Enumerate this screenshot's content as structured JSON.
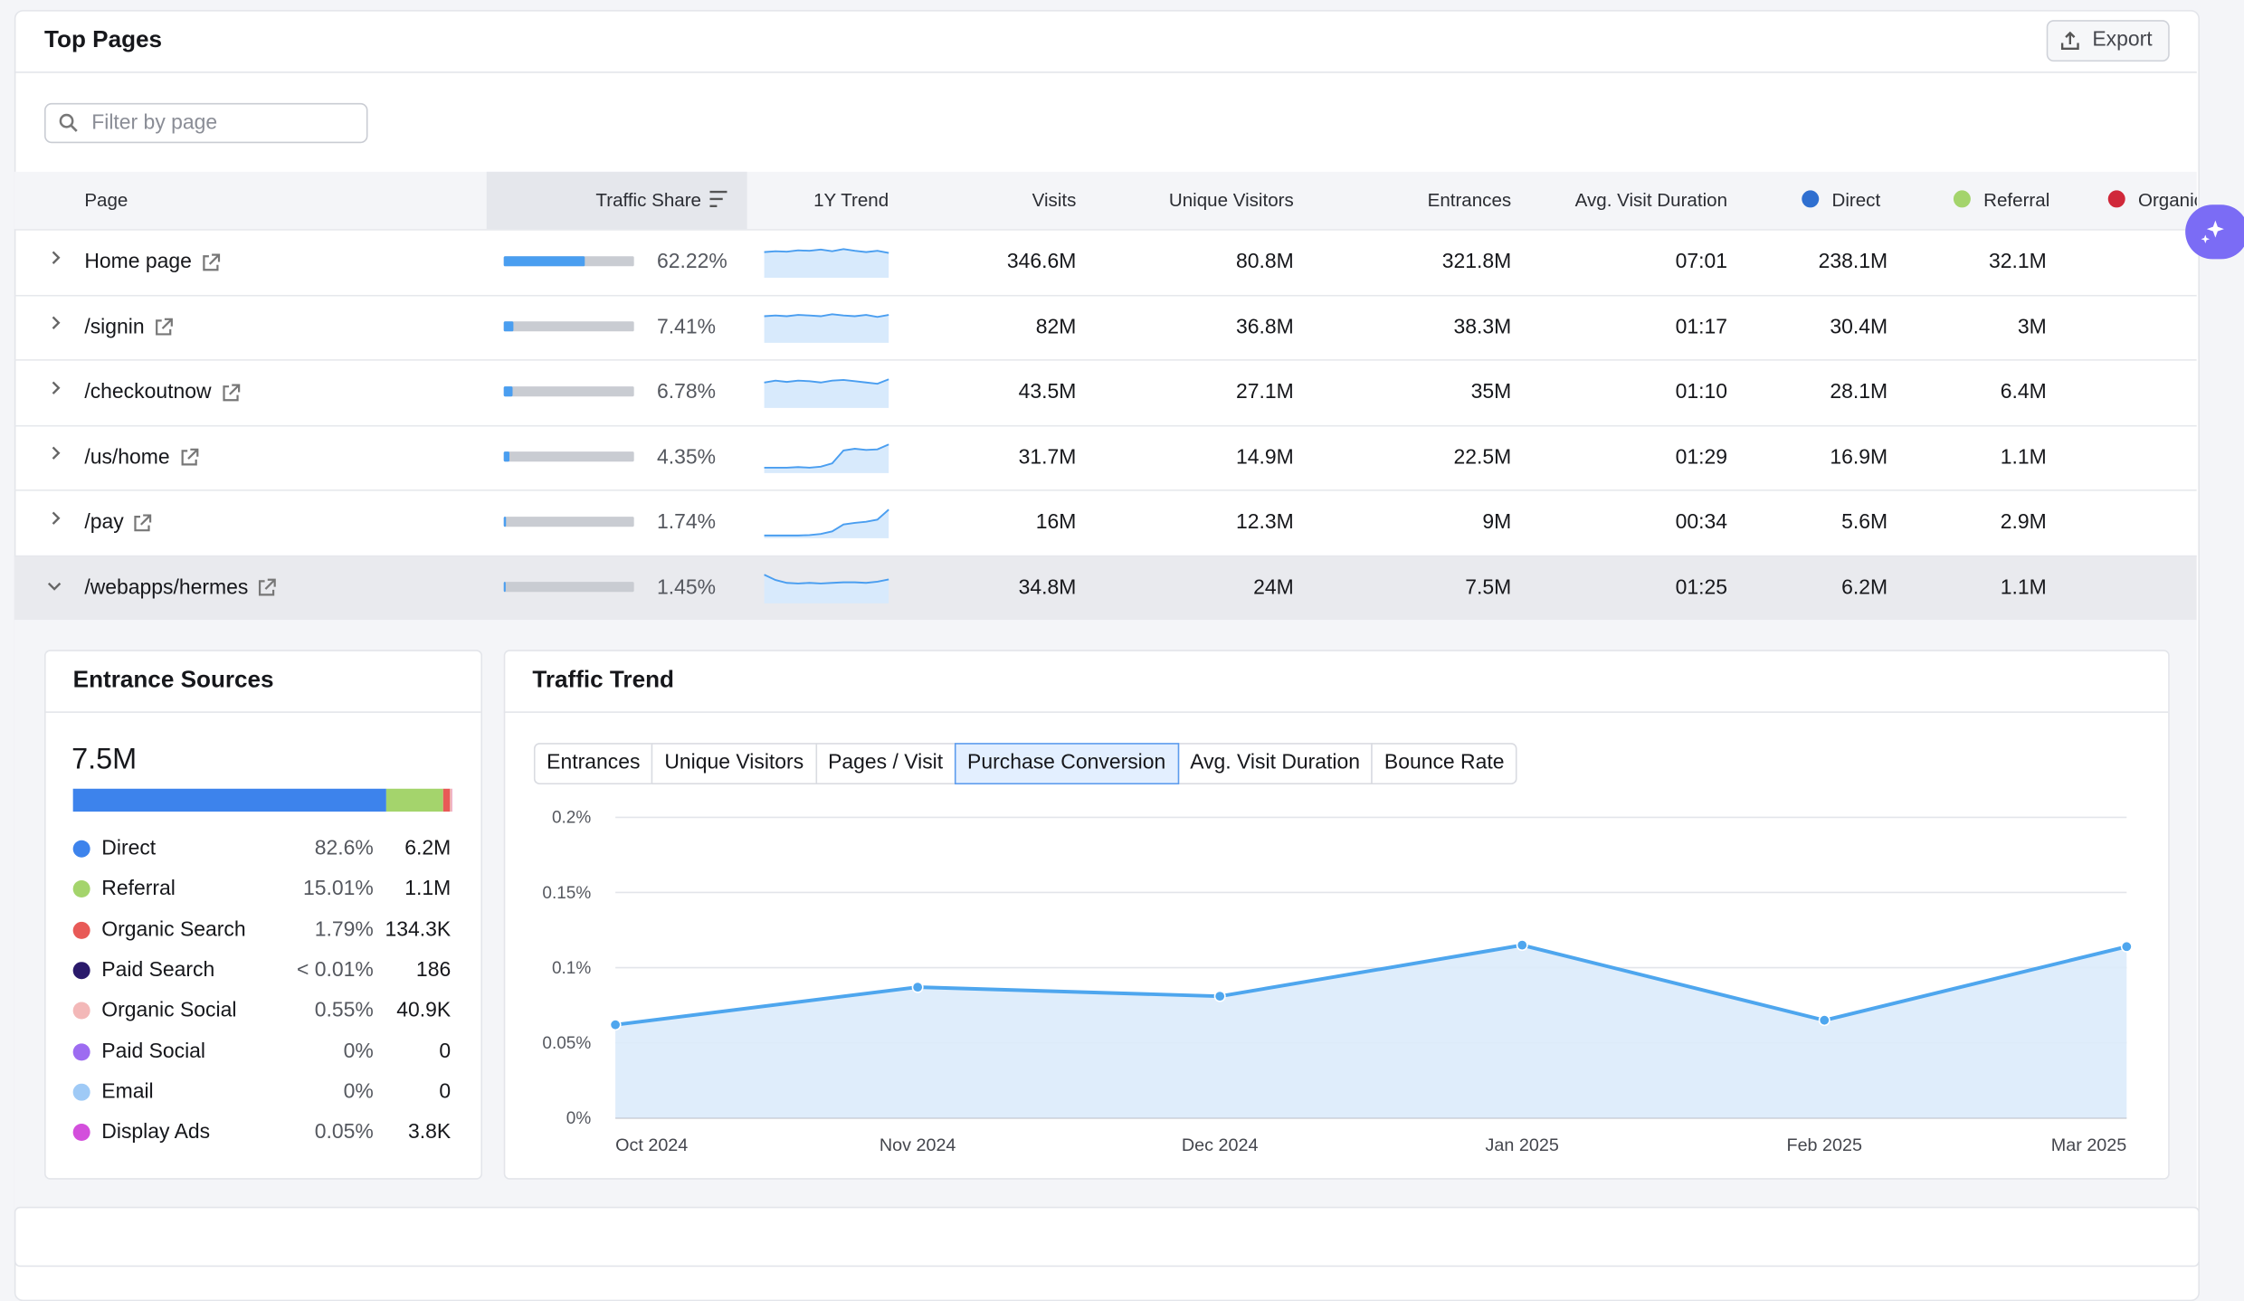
{
  "header": {
    "title": "Top Pages",
    "export": "Export"
  },
  "filter_placeholder": "Filter by page",
  "table": {
    "columns": [
      {
        "label": "Page"
      },
      {
        "label": "Traffic Share"
      },
      {
        "label": "1Y Trend"
      },
      {
        "label": "Visits"
      },
      {
        "label": "Unique Visitors"
      },
      {
        "label": "Entrances"
      },
      {
        "label": "Avg. Visit Duration"
      },
      {
        "label": "Direct",
        "dot": "#2f6fd0"
      },
      {
        "label": "Referral",
        "dot": "#a4d46c"
      },
      {
        "label": "Organic",
        "dot": "#d0283a"
      }
    ],
    "rows": [
      {
        "page": "Home page",
        "traffic_share": 62.22,
        "traffic_share_label": "62.22%",
        "trend": [
          6.0,
          6.2,
          6.1,
          6.4,
          6.3,
          6.6,
          6.2,
          6.7,
          6.3,
          6.0,
          6.3,
          5.8
        ],
        "visits": "346.6M",
        "unique_visitors": "80.8M",
        "entrances": "321.8M",
        "duration": "07:01",
        "direct": "238.1M",
        "referral": "32.1M"
      },
      {
        "page": "/signin",
        "traffic_share": 7.41,
        "traffic_share_label": "7.41%",
        "trend": [
          4.0,
          4.1,
          4.0,
          4.2,
          4.1,
          4.0,
          4.3,
          4.1,
          4.0,
          4.2,
          3.9,
          4.2
        ],
        "visits": "82M",
        "unique_visitors": "36.8M",
        "entrances": "38.3M",
        "duration": "01:17",
        "direct": "30.4M",
        "referral": "3M"
      },
      {
        "page": "/checkoutnow",
        "traffic_share": 6.78,
        "traffic_share_label": "6.78%",
        "trend": [
          4.0,
          4.3,
          4.1,
          4.3,
          4.2,
          4.0,
          4.3,
          4.4,
          4.2,
          4.0,
          3.8,
          4.5
        ],
        "visits": "43.5M",
        "unique_visitors": "27.1M",
        "entrances": "35M",
        "duration": "01:10",
        "direct": "28.1M",
        "referral": "6.4M"
      },
      {
        "page": "/us/home",
        "traffic_share": 4.35,
        "traffic_share_label": "4.35%",
        "trend": [
          1.0,
          1.0,
          1.0,
          1.1,
          1.0,
          1.2,
          1.8,
          4.2,
          4.5,
          4.3,
          4.4,
          5.3
        ],
        "visits": "31.7M",
        "unique_visitors": "14.9M",
        "entrances": "22.5M",
        "duration": "01:29",
        "direct": "16.9M",
        "referral": "1.1M"
      },
      {
        "page": "/pay",
        "traffic_share": 1.74,
        "traffic_share_label": "1.74%",
        "trend": [
          0.5,
          0.5,
          0.5,
          0.5,
          0.6,
          0.8,
          1.3,
          2.6,
          2.9,
          3.1,
          3.5,
          5.4
        ],
        "visits": "16M",
        "unique_visitors": "12.3M",
        "entrances": "9M",
        "duration": "00:34",
        "direct": "5.6M",
        "referral": "2.9M"
      },
      {
        "page": "/webapps/hermes",
        "traffic_share": 1.45,
        "traffic_share_label": "1.45%",
        "trend": [
          4.9,
          4.0,
          3.5,
          3.4,
          3.5,
          3.4,
          3.5,
          3.6,
          3.6,
          3.5,
          3.7,
          4.1
        ],
        "visits": "34.8M",
        "unique_visitors": "24M",
        "entrances": "7.5M",
        "duration": "01:25",
        "direct": "6.2M",
        "referral": "1.1M"
      }
    ]
  },
  "entrance_sources": {
    "title": "Entrance Sources",
    "total": "7.5M",
    "sources": [
      {
        "name": "Direct",
        "color": "#3d83ec",
        "share": 82.6,
        "share_label": "82.6%",
        "count": "6.2M"
      },
      {
        "name": "Referral",
        "color": "#a4d46c",
        "share": 15.01,
        "share_label": "15.01%",
        "count": "1.1M"
      },
      {
        "name": "Organic Search",
        "color": "#e85a57",
        "share": 1.79,
        "share_label": "1.79%",
        "count": "134.3K"
      },
      {
        "name": "Paid Search",
        "color": "#2a1a6b",
        "share": 0.01,
        "share_label": "< 0.01%",
        "count": "186"
      },
      {
        "name": "Organic Social",
        "color": "#f3b8b8",
        "share": 0.55,
        "share_label": "0.55%",
        "count": "40.9K"
      },
      {
        "name": "Paid Social",
        "color": "#9d6cf1",
        "share": 0,
        "share_label": "0%",
        "count": "0"
      },
      {
        "name": "Email",
        "color": "#9fcaf6",
        "share": 0,
        "share_label": "0%",
        "count": "0"
      },
      {
        "name": "Display Ads",
        "color": "#d34fdc",
        "share": 0.05,
        "share_label": "0.05%",
        "count": "3.8K"
      }
    ]
  },
  "traffic_trend": {
    "title": "Traffic Trend",
    "tabs": [
      "Entrances",
      "Unique Visitors",
      "Pages / Visit",
      "Purchase Conversion",
      "Avg. Visit Duration",
      "Bounce Rate"
    ],
    "active_tab": 3,
    "chart": {
      "type": "line",
      "categories": [
        "Oct 2024",
        "Nov 2024",
        "Dec 2024",
        "Jan 2025",
        "Feb 2025",
        "Mar 2025"
      ],
      "values": [
        0.062,
        0.087,
        0.081,
        0.115,
        0.065,
        0.114
      ],
      "color": "#4ea6ee",
      "area": true,
      "ylim": [
        0,
        0.2
      ],
      "yticks": [
        {
          "value": 0,
          "label": "0%"
        },
        {
          "value": 0.05,
          "label": "0.05%"
        },
        {
          "value": 0.1,
          "label": "0.1%"
        },
        {
          "value": 0.15,
          "label": "0.15%"
        },
        {
          "value": 0.2,
          "label": "0.2%"
        }
      ],
      "grid": true
    }
  }
}
